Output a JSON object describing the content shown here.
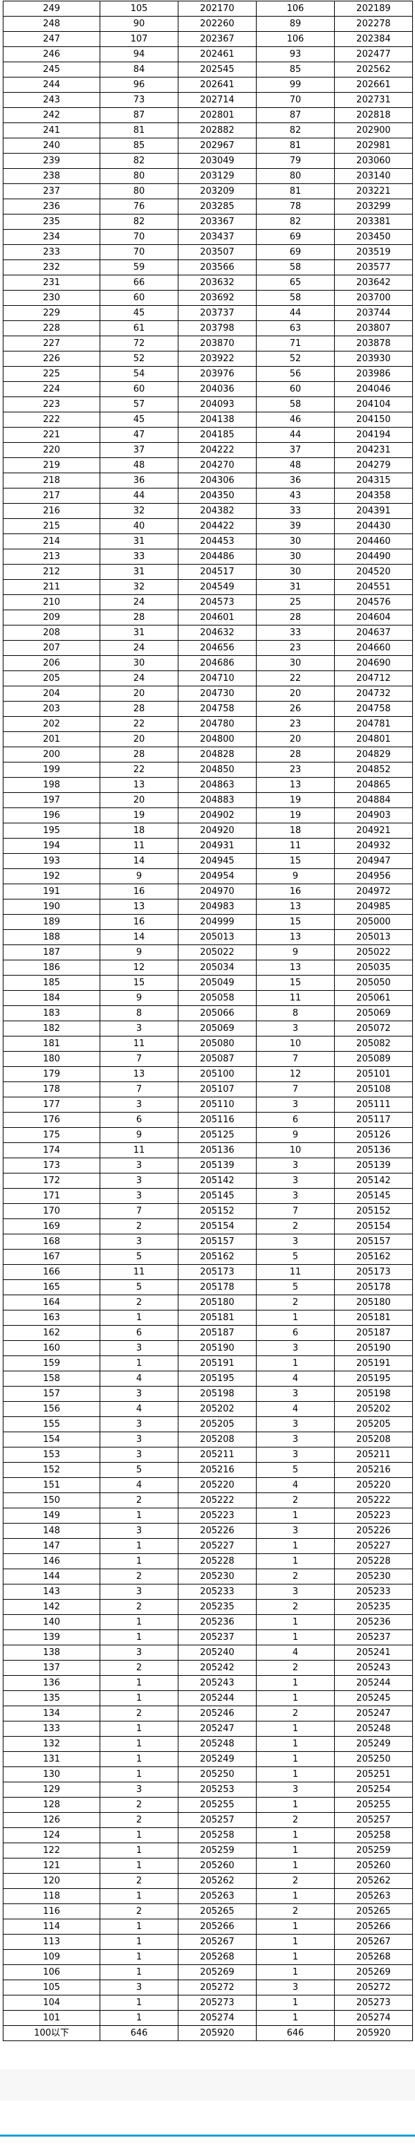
{
  "table": {
    "rows": [
      [
        "249",
        "105",
        "202170",
        "106",
        "202189"
      ],
      [
        "248",
        "90",
        "202260",
        "89",
        "202278"
      ],
      [
        "247",
        "107",
        "202367",
        "106",
        "202384"
      ],
      [
        "246",
        "94",
        "202461",
        "93",
        "202477"
      ],
      [
        "245",
        "84",
        "202545",
        "85",
        "202562"
      ],
      [
        "244",
        "96",
        "202641",
        "99",
        "202661"
      ],
      [
        "243",
        "73",
        "202714",
        "70",
        "202731"
      ],
      [
        "242",
        "87",
        "202801",
        "87",
        "202818"
      ],
      [
        "241",
        "81",
        "202882",
        "82",
        "202900"
      ],
      [
        "240",
        "85",
        "202967",
        "81",
        "202981"
      ],
      [
        "239",
        "82",
        "203049",
        "79",
        "203060"
      ],
      [
        "238",
        "80",
        "203129",
        "80",
        "203140"
      ],
      [
        "237",
        "80",
        "203209",
        "81",
        "203221"
      ],
      [
        "236",
        "76",
        "203285",
        "78",
        "203299"
      ],
      [
        "235",
        "82",
        "203367",
        "82",
        "203381"
      ],
      [
        "234",
        "70",
        "203437",
        "69",
        "203450"
      ],
      [
        "233",
        "70",
        "203507",
        "69",
        "203519"
      ],
      [
        "232",
        "59",
        "203566",
        "58",
        "203577"
      ],
      [
        "231",
        "66",
        "203632",
        "65",
        "203642"
      ],
      [
        "230",
        "60",
        "203692",
        "58",
        "203700"
      ],
      [
        "229",
        "45",
        "203737",
        "44",
        "203744"
      ],
      [
        "228",
        "61",
        "203798",
        "63",
        "203807"
      ],
      [
        "227",
        "72",
        "203870",
        "71",
        "203878"
      ],
      [
        "226",
        "52",
        "203922",
        "52",
        "203930"
      ],
      [
        "225",
        "54",
        "203976",
        "56",
        "203986"
      ],
      [
        "224",
        "60",
        "204036",
        "60",
        "204046"
      ],
      [
        "223",
        "57",
        "204093",
        "58",
        "204104"
      ],
      [
        "222",
        "45",
        "204138",
        "46",
        "204150"
      ],
      [
        "221",
        "47",
        "204185",
        "44",
        "204194"
      ],
      [
        "220",
        "37",
        "204222",
        "37",
        "204231"
      ],
      [
        "219",
        "48",
        "204270",
        "48",
        "204279"
      ],
      [
        "218",
        "36",
        "204306",
        "36",
        "204315"
      ],
      [
        "217",
        "44",
        "204350",
        "43",
        "204358"
      ],
      [
        "216",
        "32",
        "204382",
        "33",
        "204391"
      ],
      [
        "215",
        "40",
        "204422",
        "39",
        "204430"
      ],
      [
        "214",
        "31",
        "204453",
        "30",
        "204460"
      ],
      [
        "213",
        "33",
        "204486",
        "30",
        "204490"
      ],
      [
        "212",
        "31",
        "204517",
        "30",
        "204520"
      ],
      [
        "211",
        "32",
        "204549",
        "31",
        "204551"
      ],
      [
        "210",
        "24",
        "204573",
        "25",
        "204576"
      ],
      [
        "209",
        "28",
        "204601",
        "28",
        "204604"
      ],
      [
        "208",
        "31",
        "204632",
        "33",
        "204637"
      ],
      [
        "207",
        "24",
        "204656",
        "23",
        "204660"
      ],
      [
        "206",
        "30",
        "204686",
        "30",
        "204690"
      ],
      [
        "205",
        "24",
        "204710",
        "22",
        "204712"
      ],
      [
        "204",
        "20",
        "204730",
        "20",
        "204732"
      ],
      [
        "203",
        "28",
        "204758",
        "26",
        "204758"
      ],
      [
        "202",
        "22",
        "204780",
        "23",
        "204781"
      ],
      [
        "201",
        "20",
        "204800",
        "20",
        "204801"
      ],
      [
        "200",
        "28",
        "204828",
        "28",
        "204829"
      ],
      [
        "199",
        "22",
        "204850",
        "23",
        "204852"
      ],
      [
        "198",
        "13",
        "204863",
        "13",
        "204865"
      ],
      [
        "197",
        "20",
        "204883",
        "19",
        "204884"
      ],
      [
        "196",
        "19",
        "204902",
        "19",
        "204903"
      ],
      [
        "195",
        "18",
        "204920",
        "18",
        "204921"
      ],
      [
        "194",
        "11",
        "204931",
        "11",
        "204932"
      ],
      [
        "193",
        "14",
        "204945",
        "15",
        "204947"
      ],
      [
        "192",
        "9",
        "204954",
        "9",
        "204956"
      ],
      [
        "191",
        "16",
        "204970",
        "16",
        "204972"
      ],
      [
        "190",
        "13",
        "204983",
        "13",
        "204985"
      ],
      [
        "189",
        "16",
        "204999",
        "15",
        "205000"
      ],
      [
        "188",
        "14",
        "205013",
        "13",
        "205013"
      ],
      [
        "187",
        "9",
        "205022",
        "9",
        "205022"
      ],
      [
        "186",
        "12",
        "205034",
        "13",
        "205035"
      ],
      [
        "185",
        "15",
        "205049",
        "15",
        "205050"
      ],
      [
        "184",
        "9",
        "205058",
        "11",
        "205061"
      ],
      [
        "183",
        "8",
        "205066",
        "8",
        "205069"
      ],
      [
        "182",
        "3",
        "205069",
        "3",
        "205072"
      ],
      [
        "181",
        "11",
        "205080",
        "10",
        "205082"
      ],
      [
        "180",
        "7",
        "205087",
        "7",
        "205089"
      ],
      [
        "179",
        "13",
        "205100",
        "12",
        "205101"
      ],
      [
        "178",
        "7",
        "205107",
        "7",
        "205108"
      ],
      [
        "177",
        "3",
        "205110",
        "3",
        "205111"
      ],
      [
        "176",
        "6",
        "205116",
        "6",
        "205117"
      ],
      [
        "175",
        "9",
        "205125",
        "9",
        "205126"
      ],
      [
        "174",
        "11",
        "205136",
        "10",
        "205136"
      ],
      [
        "173",
        "3",
        "205139",
        "3",
        "205139"
      ],
      [
        "172",
        "3",
        "205142",
        "3",
        "205142"
      ],
      [
        "171",
        "3",
        "205145",
        "3",
        "205145"
      ],
      [
        "170",
        "7",
        "205152",
        "7",
        "205152"
      ],
      [
        "169",
        "2",
        "205154",
        "2",
        "205154"
      ],
      [
        "168",
        "3",
        "205157",
        "3",
        "205157"
      ],
      [
        "167",
        "5",
        "205162",
        "5",
        "205162"
      ],
      [
        "166",
        "11",
        "205173",
        "11",
        "205173"
      ],
      [
        "165",
        "5",
        "205178",
        "5",
        "205178"
      ],
      [
        "164",
        "2",
        "205180",
        "2",
        "205180"
      ],
      [
        "163",
        "1",
        "205181",
        "1",
        "205181"
      ],
      [
        "162",
        "6",
        "205187",
        "6",
        "205187"
      ],
      [
        "160",
        "3",
        "205190",
        "3",
        "205190"
      ],
      [
        "159",
        "1",
        "205191",
        "1",
        "205191"
      ],
      [
        "158",
        "4",
        "205195",
        "4",
        "205195"
      ],
      [
        "157",
        "3",
        "205198",
        "3",
        "205198"
      ],
      [
        "156",
        "4",
        "205202",
        "4",
        "205202"
      ],
      [
        "155",
        "3",
        "205205",
        "3",
        "205205"
      ],
      [
        "154",
        "3",
        "205208",
        "3",
        "205208"
      ],
      [
        "153",
        "3",
        "205211",
        "3",
        "205211"
      ],
      [
        "152",
        "5",
        "205216",
        "5",
        "205216"
      ],
      [
        "151",
        "4",
        "205220",
        "4",
        "205220"
      ],
      [
        "150",
        "2",
        "205222",
        "2",
        "205222"
      ],
      [
        "149",
        "1",
        "205223",
        "1",
        "205223"
      ],
      [
        "148",
        "3",
        "205226",
        "3",
        "205226"
      ],
      [
        "147",
        "1",
        "205227",
        "1",
        "205227"
      ],
      [
        "146",
        "1",
        "205228",
        "1",
        "205228"
      ],
      [
        "144",
        "2",
        "205230",
        "2",
        "205230"
      ],
      [
        "143",
        "3",
        "205233",
        "3",
        "205233"
      ],
      [
        "142",
        "2",
        "205235",
        "2",
        "205235"
      ],
      [
        "140",
        "1",
        "205236",
        "1",
        "205236"
      ],
      [
        "139",
        "1",
        "205237",
        "1",
        "205237"
      ],
      [
        "138",
        "3",
        "205240",
        "4",
        "205241"
      ],
      [
        "137",
        "2",
        "205242",
        "2",
        "205243"
      ],
      [
        "136",
        "1",
        "205243",
        "1",
        "205244"
      ],
      [
        "135",
        "1",
        "205244",
        "1",
        "205245"
      ],
      [
        "134",
        "2",
        "205246",
        "2",
        "205247"
      ],
      [
        "133",
        "1",
        "205247",
        "1",
        "205248"
      ],
      [
        "132",
        "1",
        "205248",
        "1",
        "205249"
      ],
      [
        "131",
        "1",
        "205249",
        "1",
        "205250"
      ],
      [
        "130",
        "1",
        "205250",
        "1",
        "205251"
      ],
      [
        "129",
        "3",
        "205253",
        "3",
        "205254"
      ],
      [
        "128",
        "2",
        "205255",
        "1",
        "205255"
      ],
      [
        "126",
        "2",
        "205257",
        "2",
        "205257"
      ],
      [
        "124",
        "1",
        "205258",
        "1",
        "205258"
      ],
      [
        "122",
        "1",
        "205259",
        "1",
        "205259"
      ],
      [
        "121",
        "1",
        "205260",
        "1",
        "205260"
      ],
      [
        "120",
        "2",
        "205262",
        "2",
        "205262"
      ],
      [
        "118",
        "1",
        "205263",
        "1",
        "205263"
      ],
      [
        "116",
        "2",
        "205265",
        "2",
        "205265"
      ],
      [
        "114",
        "1",
        "205266",
        "1",
        "205266"
      ],
      [
        "113",
        "1",
        "205267",
        "1",
        "205267"
      ],
      [
        "109",
        "1",
        "205268",
        "1",
        "205268"
      ],
      [
        "106",
        "1",
        "205269",
        "1",
        "205269"
      ],
      [
        "105",
        "3",
        "205272",
        "3",
        "205272"
      ],
      [
        "104",
        "1",
        "205273",
        "1",
        "205273"
      ],
      [
        "101",
        "1",
        "205274",
        "1",
        "205274"
      ],
      [
        "100以下",
        "646",
        "205920",
        "646",
        "205920"
      ]
    ]
  },
  "colors": {
    "footer_band": "#f7f7f7",
    "accent_line": "#1e9fd3"
  }
}
